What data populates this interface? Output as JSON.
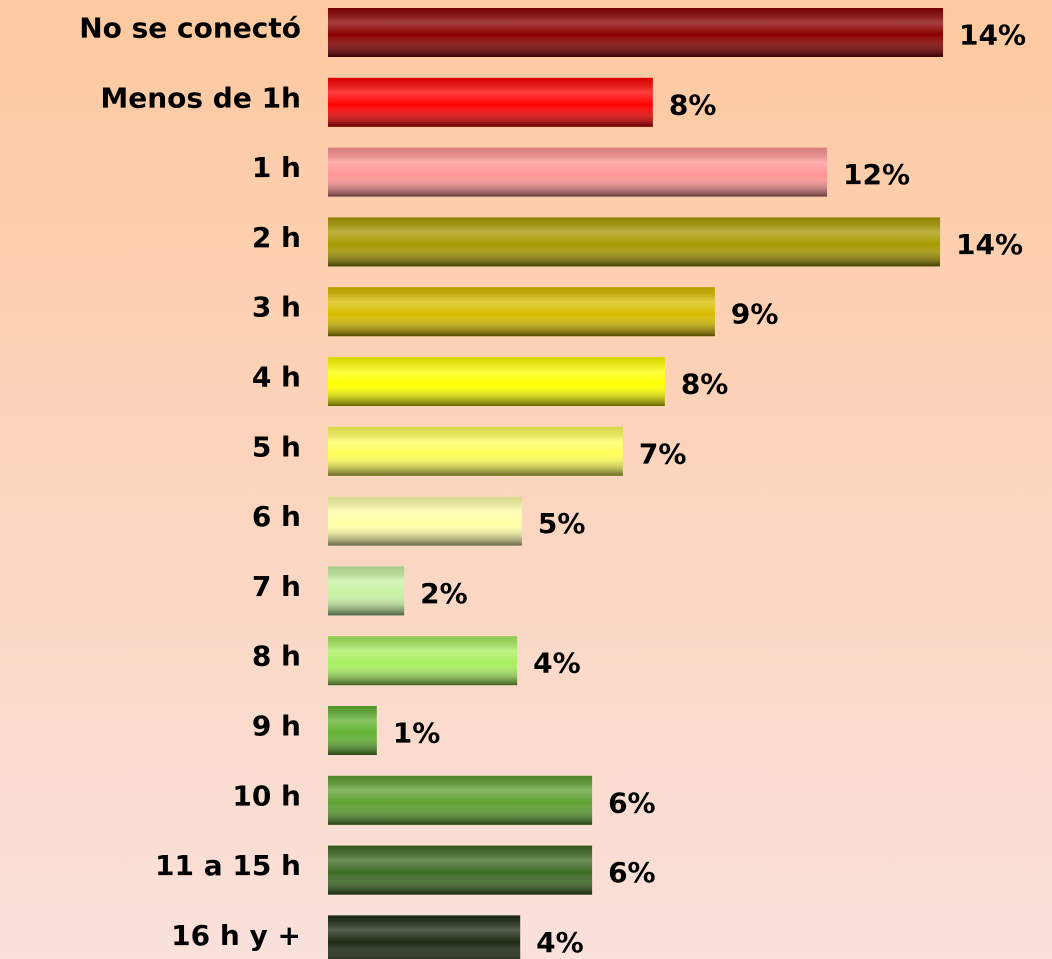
{
  "chart_data": {
    "type": "bar",
    "orientation": "horizontal",
    "categories": [
      "No se conectó",
      "Menos de 1h",
      "1 h",
      "2 h",
      "3 h",
      "4 h",
      "5 h",
      "6 h",
      "7 h",
      "8 h",
      "9 h",
      "10 h",
      "11 a 15 h",
      "16 h y +"
    ],
    "values": [
      14.37,
      7.59,
      11.66,
      14.3,
      9.04,
      7.87,
      6.89,
      4.53,
      1.78,
      4.42,
      1.14,
      6.17,
      6.17,
      4.49
    ],
    "value_labels": [
      "14%",
      "8%",
      "12%",
      "14%",
      "9%",
      "8%",
      "7%",
      "5%",
      "2%",
      "4%",
      "1%",
      "6%",
      "6%",
      "4%"
    ],
    "colors": [
      "#8b0000",
      "#ff0000",
      "#ff9494",
      "#a89a00",
      "#d8bc00",
      "#ffff00",
      "#ffff5a",
      "#ffffa8",
      "#c6f2a2",
      "#a8f060",
      "#62b232",
      "#5ea032",
      "#3c6a22",
      "#1c2a12"
    ],
    "xlim": [
      0,
      17
    ]
  }
}
